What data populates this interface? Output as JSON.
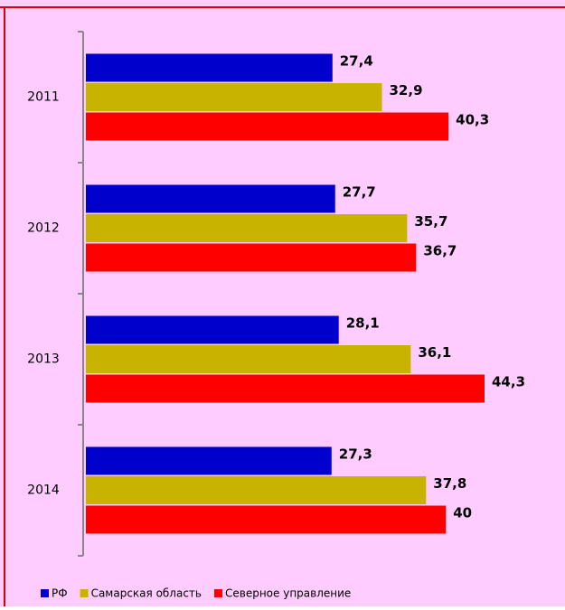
{
  "chart_data": {
    "type": "bar",
    "orientation": "horizontal",
    "categories": [
      "2011",
      "2012",
      "2013",
      "2014"
    ],
    "series": [
      {
        "name": "РФ",
        "color": "#0000cc",
        "values": [
          27.4,
          27.7,
          28.1,
          27.3
        ],
        "value_labels": [
          "27,4",
          "27,7",
          "28,1",
          "27,3"
        ]
      },
      {
        "name": "Самарская область",
        "color": "#c8b400",
        "values": [
          32.9,
          35.7,
          36.1,
          37.8
        ],
        "value_labels": [
          "32,9",
          "35,7",
          "36,1",
          "37,8"
        ]
      },
      {
        "name": "Северное управление",
        "color": "#ff0000",
        "values": [
          40.3,
          36.7,
          44.3,
          40
        ],
        "value_labels": [
          "40,3",
          "36,7",
          "44,3",
          "40"
        ]
      }
    ],
    "legend": "bottom"
  }
}
